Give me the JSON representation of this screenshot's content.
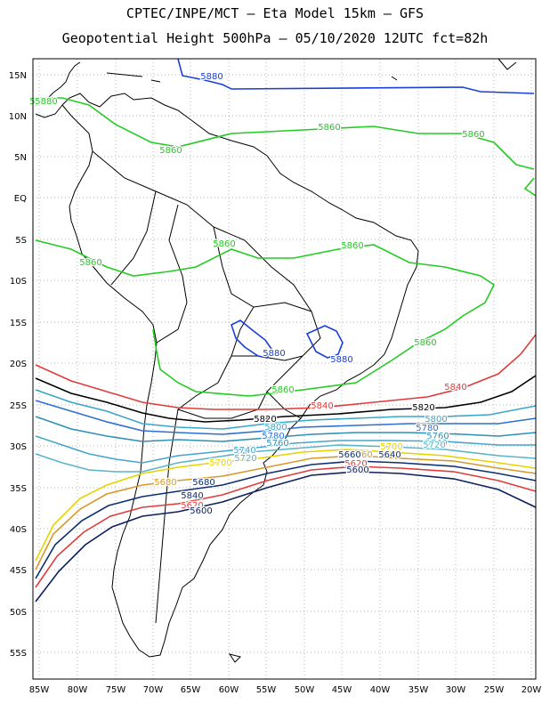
{
  "header": {
    "title_line1": "CPTEC/INPE/MCT –  Eta Model 15km – GFS",
    "title_line2": "Geopotential Height 500hPa – 05/10/2020 12UTC fct=82h"
  },
  "map": {
    "lon_labels": [
      "85W",
      "80W",
      "75W",
      "70W",
      "65W",
      "60W",
      "55W",
      "50W",
      "45W",
      "40W",
      "35W",
      "30W",
      "25W",
      "20W"
    ],
    "lat_labels": [
      "15N",
      "10N",
      "5N",
      "EQ",
      "5S",
      "10S",
      "15S",
      "20S",
      "25S",
      "30S",
      "35S",
      "40S",
      "45S",
      "50S",
      "55S"
    ],
    "gridlines": "dotted",
    "contour_interval_gpm": 20,
    "contours": [
      {
        "value": "5880",
        "color": "#1a3fd6"
      },
      {
        "value": "5860",
        "color": "#22cc22"
      },
      {
        "value": "5840",
        "color": "#e03b3b"
      },
      {
        "value": "5820",
        "color": "#000000"
      },
      {
        "value": "5800",
        "color": "#3aa6c8"
      },
      {
        "value": "5780",
        "color": "#2f6fd0"
      },
      {
        "value": "5760",
        "color": "#2f8fb5"
      },
      {
        "value": "5740",
        "color": "#46a6c9"
      },
      {
        "value": "5720",
        "color": "#5ab4c8"
      },
      {
        "value": "5700",
        "color": "#e6d400"
      },
      {
        "value": "5680",
        "color": "#d79a2a"
      },
      {
        "value": "5660",
        "color": "#0d2f72"
      },
      {
        "value": "5620",
        "color": "#e03b3b"
      },
      {
        "value": "5600",
        "color": "#0d1f5e"
      }
    ],
    "contour_labels": [
      {
        "text": "5880",
        "color": "#1a3fd6"
      },
      {
        "text": "5880",
        "color": "#1a3fd6"
      },
      {
        "text": "5880",
        "color": "#1a3fd6"
      },
      {
        "text": "5860",
        "color": "#22cc22"
      },
      {
        "text": "5860",
        "color": "#22cc22"
      },
      {
        "text": "5860",
        "color": "#22cc22"
      },
      {
        "text": "5860",
        "color": "#22cc22"
      },
      {
        "text": "5860",
        "color": "#22cc22"
      },
      {
        "text": "5860",
        "color": "#22cc22"
      },
      {
        "text": "5860",
        "color": "#22cc22"
      },
      {
        "text": "5860",
        "color": "#22cc22"
      },
      {
        "text": "5860",
        "color": "#22cc22"
      },
      {
        "text": "5840",
        "color": "#e03b3b"
      },
      {
        "text": "5840",
        "color": "#e03b3b"
      },
      {
        "text": "5820",
        "color": "#000000"
      },
      {
        "text": "5820",
        "color": "#000000"
      },
      {
        "text": "5800",
        "color": "#3aa6c8"
      },
      {
        "text": "5800",
        "color": "#3aa6c8"
      },
      {
        "text": "5780",
        "color": "#2f6fd0"
      },
      {
        "text": "5780",
        "color": "#2f6fd0"
      },
      {
        "text": "5760",
        "color": "#2f8fb5"
      },
      {
        "text": "5760",
        "color": "#2f8fb5"
      },
      {
        "text": "5740",
        "color": "#46a6c9"
      },
      {
        "text": "5740",
        "color": "#46a6c9"
      },
      {
        "text": "5720",
        "color": "#5ab4c8"
      },
      {
        "text": "5720",
        "color": "#5ab4c8"
      },
      {
        "text": "5700",
        "color": "#e6d400"
      },
      {
        "text": "5700",
        "color": "#e6d400"
      },
      {
        "text": "5680",
        "color": "#d79a2a"
      },
      {
        "text": "5680",
        "color": "#0d2f72"
      },
      {
        "text": "5660",
        "color": "#d79a2a"
      },
      {
        "text": "5660",
        "color": "#0d2f72"
      },
      {
        "text": "5640",
        "color": "#0d2f72"
      },
      {
        "text": "5620",
        "color": "#e03b3b"
      },
      {
        "text": "5620",
        "color": "#e03b3b"
      },
      {
        "text": "5600",
        "color": "#0d1f5e"
      },
      {
        "text": "5600",
        "color": "#0d1f5e"
      },
      {
        "text": "5840",
        "color": "#0d2f72"
      },
      {
        "text": "5880",
        "color": "#22cc22"
      }
    ]
  }
}
